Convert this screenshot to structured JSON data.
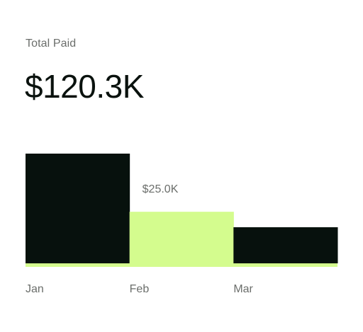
{
  "card": {
    "label": "Total Paid",
    "value": "$120.3K"
  },
  "colors": {
    "dark_bar": "#07110d",
    "highlight_bar": "#d4fc8e",
    "baseline": "#d4fc8e",
    "muted_text": "#6b6e6b",
    "primary_text": "#0a120e"
  },
  "chart_data": {
    "type": "bar",
    "categories": [
      "Jan",
      "Feb",
      "Mar"
    ],
    "values": [
      53.2,
      25.0,
      17.5
    ],
    "highlighted_index": 1,
    "data_labels": [
      "",
      "$25.0K",
      ""
    ],
    "ylim": [
      0,
      53.2
    ],
    "grid": false,
    "legend": "none",
    "title": "",
    "xlabel": "",
    "ylabel": ""
  }
}
